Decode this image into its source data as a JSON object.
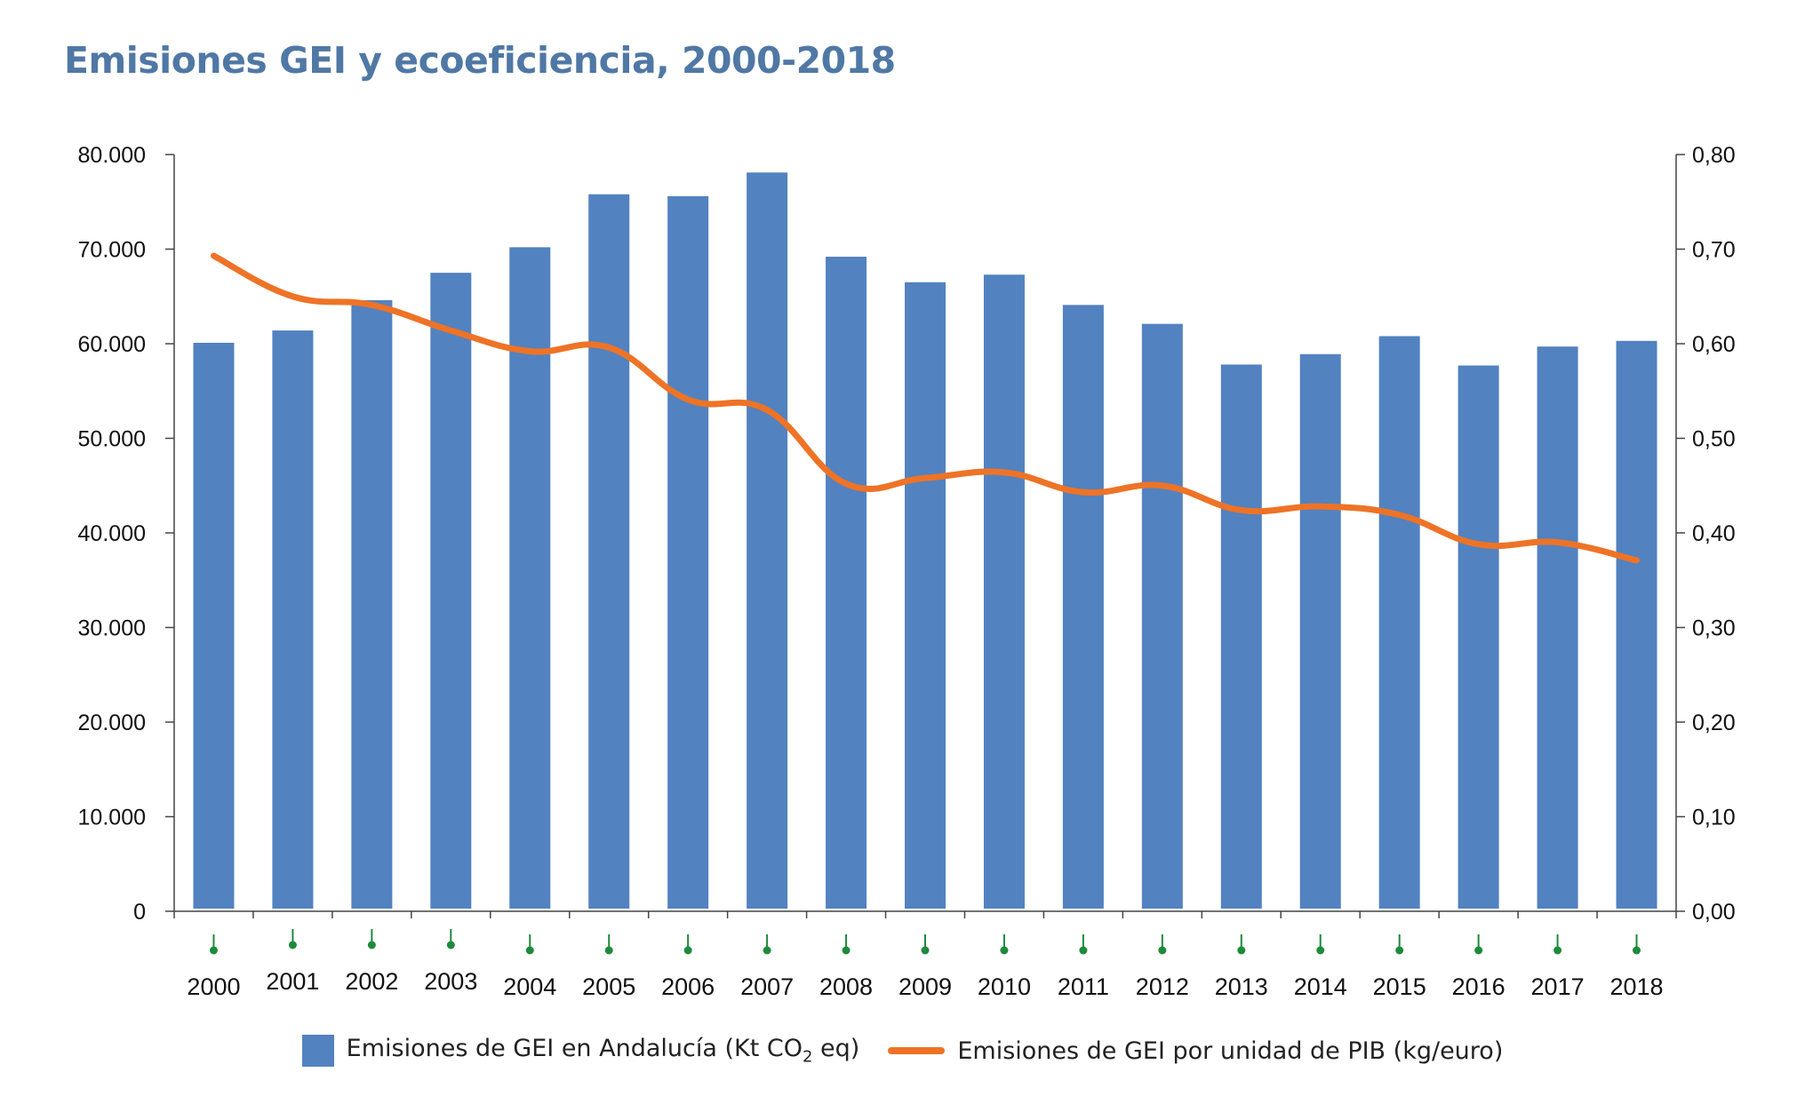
{
  "title": "Emisiones GEI y ecoeficiencia, 2000-2018",
  "chart_data": {
    "type": "bar+line",
    "categories": [
      "2000",
      "2001",
      "2002",
      "2003",
      "2004",
      "2005",
      "2006",
      "2007",
      "2008",
      "2009",
      "2010",
      "2011",
      "2012",
      "2013",
      "2014",
      "2015",
      "2016",
      "2017",
      "2018"
    ],
    "series": [
      {
        "name": "Emisiones de GEI en Andalucía (Kt CO2 eq)",
        "type": "bar",
        "axis": "left",
        "color": "#5282c0",
        "values": [
          60100,
          61400,
          64600,
          67500,
          70200,
          75800,
          75600,
          78100,
          69200,
          66500,
          67300,
          64100,
          62100,
          57800,
          58900,
          60800,
          57700,
          59700,
          60300
        ]
      },
      {
        "name": "Emisiones de GEI por unidad de PIB (kg/euro)",
        "type": "line",
        "axis": "right",
        "color": "#ee7326",
        "values": [
          0.693,
          0.65,
          0.641,
          0.614,
          0.592,
          0.596,
          0.541,
          0.53,
          0.452,
          0.458,
          0.464,
          0.443,
          0.45,
          0.424,
          0.428,
          0.419,
          0.388,
          0.39,
          0.371
        ]
      }
    ],
    "y_left": {
      "min": 0,
      "max": 80000,
      "ticks": [
        "0",
        "10.000",
        "20.000",
        "30.000",
        "40.000",
        "50.000",
        "60.000",
        "70.000",
        "80.000"
      ]
    },
    "y_right": {
      "min": 0,
      "max": 0.8,
      "ticks": [
        "0,00",
        "0,10",
        "0,20",
        "0,30",
        "0,40",
        "0,50",
        "0,60",
        "0,70",
        "0,80"
      ]
    },
    "grid": false,
    "legend_position": "bottom-center"
  },
  "legend": {
    "bars_label_prefix": "Emisiones de GEI en Andalucía (Kt CO",
    "bars_label_sub": "2",
    "bars_label_suffix": " eq)",
    "line_label": "Emisiones de GEI por unidad de PIB (kg/euro)"
  }
}
